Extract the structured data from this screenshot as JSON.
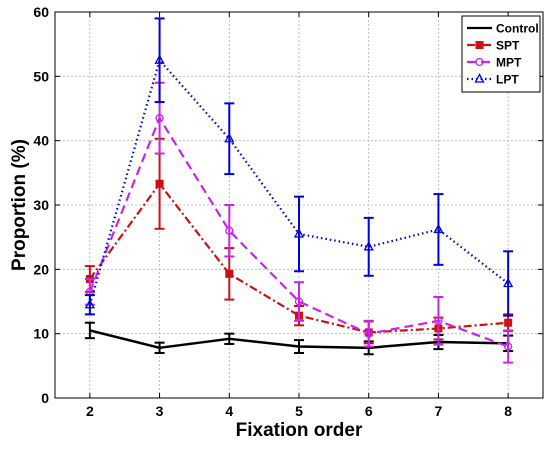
{
  "chart_data": {
    "type": "line",
    "xlabel": "Fixation order",
    "ylabel": "Proportion (%)",
    "x": [
      2,
      3,
      4,
      5,
      6,
      7,
      8
    ],
    "xlim": [
      1.5,
      8.5
    ],
    "ylim": [
      0,
      60
    ],
    "xticks": [
      "2",
      "3",
      "4",
      "5",
      "6",
      "7",
      "8"
    ],
    "yticks": [
      "0",
      "10",
      "20",
      "30",
      "40",
      "50",
      "60"
    ],
    "grid": true,
    "legend_position": "top-right",
    "series": [
      {
        "name": "Control",
        "color": "#000000",
        "dash": "solid",
        "marker": "none",
        "values": [
          10.5,
          7.8,
          9.2,
          8.0,
          7.8,
          8.7,
          8.5
        ],
        "err": [
          1.2,
          0.8,
          0.8,
          1.0,
          1.0,
          1.1,
          1.2
        ]
      },
      {
        "name": "SPT",
        "color": "#cc1111",
        "dash": "dashdot",
        "marker": "square",
        "values": [
          18.5,
          33.3,
          19.3,
          12.8,
          10.2,
          10.8,
          11.7
        ],
        "err": [
          2.0,
          7.0,
          4.0,
          1.5,
          1.7,
          1.7,
          1.3
        ]
      },
      {
        "name": "MPT",
        "color": "#cc22ee",
        "dash": "dashed",
        "marker": "circle",
        "values": [
          16.5,
          43.5,
          26.0,
          15.0,
          10.0,
          12.0,
          8.0
        ],
        "err": [
          2.0,
          5.5,
          4.0,
          3.0,
          2.0,
          3.7,
          2.5
        ]
      },
      {
        "name": "LPT",
        "color": "#0000dd",
        "dash": "dotted",
        "marker": "triangle",
        "values": [
          14.5,
          52.5,
          40.3,
          25.5,
          23.5,
          26.2,
          17.8
        ],
        "err": [
          1.5,
          6.5,
          5.5,
          5.8,
          4.5,
          5.5,
          5.0
        ]
      }
    ]
  }
}
